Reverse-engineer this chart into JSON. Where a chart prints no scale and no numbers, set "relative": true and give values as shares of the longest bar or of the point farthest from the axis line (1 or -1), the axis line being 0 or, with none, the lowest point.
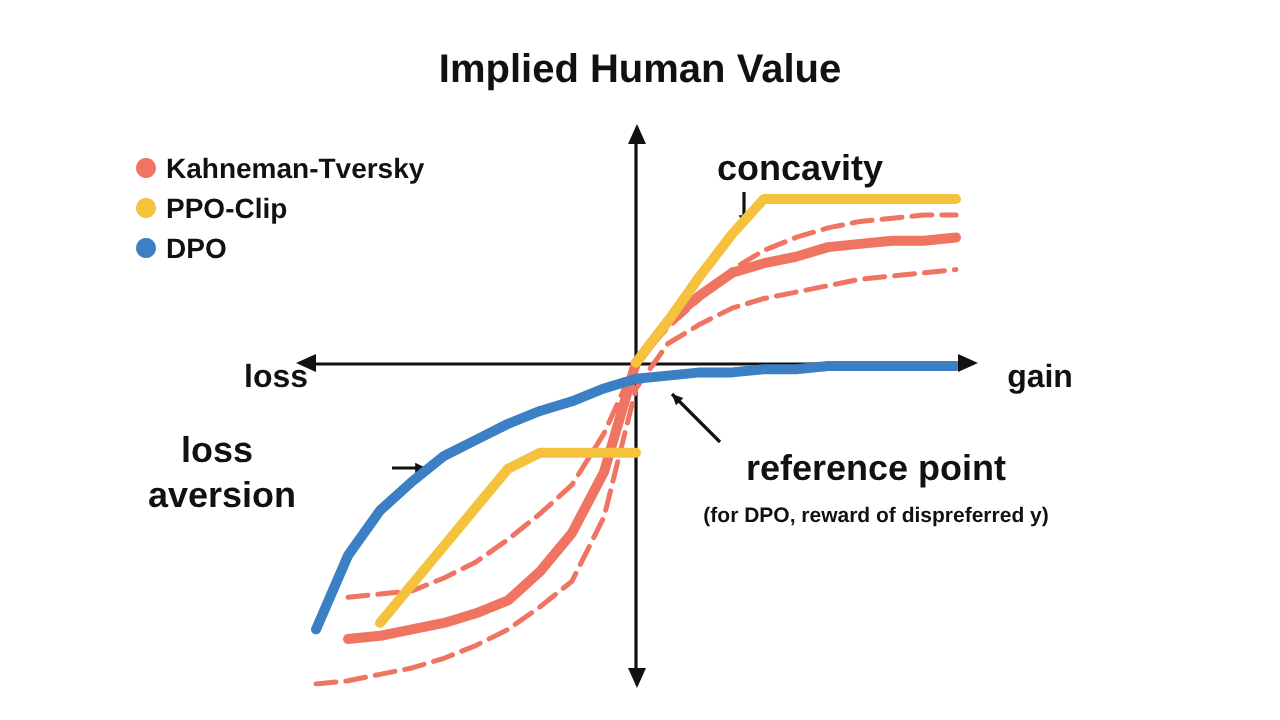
{
  "chart_data": {
    "type": "line",
    "title": "Implied Human Value",
    "relative": true,
    "grid": false,
    "legend": "top left",
    "marker": "none",
    "line_style": "solid",
    "annotations": [
      "loss",
      "gain",
      "concavity",
      "loss aversion",
      "reference point",
      "(for DPO, reward of dispreferred y)"
    ],
    "categories": [
      null,
      null,
      null,
      null,
      null,
      null,
      null,
      null,
      null,
      null,
      null,
      null,
      null,
      null,
      null,
      null,
      null,
      null,
      null,
      null,
      null
    ],
    "series": [
      {
        "name": "Kahneman-Tversky",
        "color": "#f07462",
        "values": [
          null,
          -0.86,
          -0.85,
          -0.83,
          -0.81,
          -0.78,
          -0.74,
          -0.65,
          -0.53,
          -0.34,
          0,
          0.13,
          0.21,
          0.28,
          0.31,
          0.33,
          0.36,
          0.37,
          0.38,
          0.38,
          0.39
        ]
      },
      {
        "name": "PPO-Clip",
        "color": "#f4c23c",
        "values": [
          null,
          null,
          null,
          null,
          null,
          null,
          null,
          null,
          null,
          null,
          0,
          0.13,
          0.27,
          0.4,
          0.51,
          0.51,
          0.51,
          0.51,
          0.51,
          0.51,
          0.51
        ]
      },
      {
        "color": "#f4c23c",
        "values": [
          null,
          null,
          -0.81,
          -0.69,
          -0.57,
          -0.45,
          -0.33,
          -0.28,
          -0.28,
          -0.28,
          -0.28,
          null,
          null,
          null,
          null,
          null,
          null,
          null,
          null,
          null,
          null
        ]
      },
      {
        "name": "DPO",
        "color": "#3b7fc4",
        "values": [
          -0.83,
          -0.6,
          -0.46,
          -0.37,
          -0.29,
          -0.24,
          -0.19,
          -0.15,
          -0.12,
          -0.08,
          -0.05,
          -0.04,
          -0.03,
          -0.03,
          -0.02,
          -0.02,
          -0.01,
          -0.01,
          -0.01,
          -0.01,
          -0.01
        ]
      },
      {
        "color": "#f07462",
        "line_style": "dashed",
        "values": [
          null,
          -0.73,
          -0.72,
          -0.71,
          -0.67,
          -0.62,
          -0.55,
          -0.47,
          -0.38,
          -0.22,
          0,
          0.11,
          0.2,
          0.29,
          0.35,
          0.39,
          0.42,
          0.44,
          0.45,
          0.46,
          0.46
        ]
      },
      {
        "color": "#f07462",
        "line_style": "dashed",
        "values": [
          -1,
          -0.99,
          -0.97,
          -0.95,
          -0.92,
          -0.88,
          -0.83,
          -0.76,
          -0.68,
          -0.48,
          -0.08,
          0.06,
          0.12,
          0.17,
          0.2,
          0.22,
          0.24,
          0.26,
          0.27,
          0.28,
          0.29
        ]
      }
    ]
  }
}
